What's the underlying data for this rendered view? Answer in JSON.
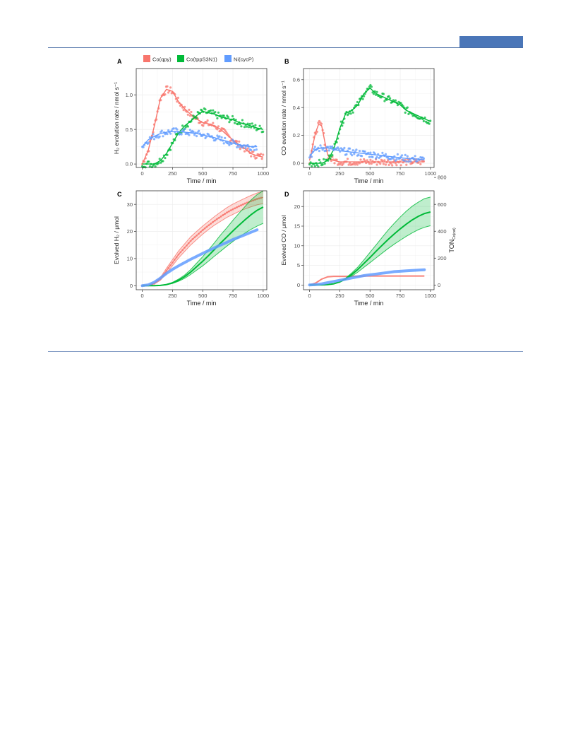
{
  "legend": {
    "items": [
      {
        "name": "Co(qpy)",
        "color": "#F8766D"
      },
      {
        "name": "Co(tppS3N1)",
        "color": "#00BA38"
      },
      {
        "name": "Ni(cycP)",
        "color": "#619CFF"
      }
    ]
  },
  "colors": {
    "rule": "#4a6ea6",
    "tab": "#4a76b8",
    "grid": "#ebebeb",
    "panel_border": "#333333"
  },
  "chart_data": [
    {
      "panel": "A",
      "type": "scatter",
      "xlabel": "Time / min",
      "ylabel": "H₂ evolution rate  / nmol s⁻¹",
      "xlim": [
        -50,
        1030
      ],
      "ylim": [
        -0.05,
        1.38
      ],
      "xticks": [
        0,
        250,
        500,
        750,
        1000
      ],
      "xtick_labels": [
        "0",
        "250",
        "500",
        "750",
        "1000"
      ],
      "yticks": [
        0.0,
        0.5,
        1.0
      ],
      "ytick_labels": [
        "0.0",
        "0.5",
        "1.0"
      ],
      "grid": true,
      "series": [
        {
          "name": "Co(qpy)",
          "style": "scatter-fit",
          "x": [
            0,
            50,
            100,
            150,
            200,
            250,
            300,
            350,
            400,
            450,
            500,
            550,
            600,
            650,
            700,
            750,
            800,
            850,
            900,
            950,
            1000
          ],
          "y": [
            0.0,
            0.2,
            0.55,
            0.95,
            1.08,
            1.05,
            0.9,
            0.8,
            0.72,
            0.65,
            0.6,
            0.58,
            0.55,
            0.5,
            0.42,
            0.35,
            0.28,
            0.22,
            0.15,
            0.12,
            0.1
          ]
        },
        {
          "name": "Co(tppS3N1)",
          "style": "scatter-fit",
          "x": [
            0,
            50,
            100,
            150,
            200,
            250,
            300,
            350,
            400,
            450,
            500,
            550,
            600,
            650,
            700,
            750,
            800,
            850,
            900,
            950,
            1000
          ],
          "y": [
            0.0,
            0.0,
            0.0,
            0.05,
            0.15,
            0.3,
            0.45,
            0.55,
            0.62,
            0.7,
            0.76,
            0.74,
            0.72,
            0.68,
            0.66,
            0.64,
            0.6,
            0.58,
            0.55,
            0.52,
            0.5
          ]
        },
        {
          "name": "Ni(cycP)",
          "style": "scatter-fit",
          "x": [
            0,
            50,
            100,
            150,
            200,
            250,
            300,
            350,
            400,
            450,
            500,
            550,
            600,
            650,
            700,
            750,
            800,
            850,
            900,
            950
          ],
          "y": [
            0.25,
            0.35,
            0.4,
            0.44,
            0.46,
            0.47,
            0.47,
            0.46,
            0.45,
            0.44,
            0.42,
            0.4,
            0.38,
            0.35,
            0.33,
            0.3,
            0.28,
            0.26,
            0.25,
            0.25
          ]
        }
      ]
    },
    {
      "panel": "B",
      "type": "scatter",
      "xlabel": "Time / min",
      "ylabel": "CO evolution rate  / nmol s⁻¹",
      "xlim": [
        -50,
        1030
      ],
      "ylim": [
        -0.03,
        0.68
      ],
      "xticks": [
        0,
        250,
        500,
        750,
        1000
      ],
      "xtick_labels": [
        "0",
        "250",
        "500",
        "750",
        "1000"
      ],
      "yticks": [
        0.0,
        0.2,
        0.4,
        0.6
      ],
      "ytick_labels": [
        "0.0",
        "0.2",
        "0.4",
        "0.6"
      ],
      "grid": true,
      "series": [
        {
          "name": "Co(qpy)",
          "style": "scatter-fit",
          "x": [
            0,
            25,
            50,
            75,
            100,
            125,
            150,
            175,
            200,
            250,
            300,
            400,
            500,
            600,
            700,
            800,
            900,
            950
          ],
          "y": [
            0.02,
            0.12,
            0.22,
            0.28,
            0.27,
            0.16,
            0.06,
            0.03,
            0.02,
            0.01,
            0.01,
            0.01,
            0.01,
            0.01,
            0.01,
            0.01,
            0.01,
            0.01
          ]
        },
        {
          "name": "Co(tppS3N1)",
          "style": "scatter-fit",
          "x": [
            0,
            50,
            100,
            150,
            200,
            250,
            300,
            350,
            400,
            450,
            500,
            550,
            600,
            650,
            700,
            750,
            800,
            850,
            900,
            950,
            1000
          ],
          "y": [
            0.0,
            0.0,
            0.0,
            0.02,
            0.1,
            0.25,
            0.36,
            0.38,
            0.42,
            0.5,
            0.54,
            0.5,
            0.48,
            0.46,
            0.44,
            0.42,
            0.38,
            0.36,
            0.34,
            0.32,
            0.3
          ]
        },
        {
          "name": "Ni(cycP)",
          "style": "scatter-fit",
          "x": [
            0,
            50,
            100,
            150,
            200,
            250,
            300,
            400,
            500,
            600,
            700,
            800,
            900,
            950
          ],
          "y": [
            0.05,
            0.1,
            0.11,
            0.11,
            0.1,
            0.09,
            0.085,
            0.075,
            0.065,
            0.055,
            0.045,
            0.035,
            0.03,
            0.025
          ]
        }
      ]
    },
    {
      "panel": "C",
      "type": "line",
      "xlabel": "Time / min",
      "ylabel": "Evolved H₂ / μmol",
      "xlim": [
        -50,
        1030
      ],
      "ylim": [
        -1.5,
        35
      ],
      "xticks": [
        0,
        250,
        500,
        750,
        1000
      ],
      "xtick_labels": [
        "0",
        "250",
        "500",
        "750",
        "1000"
      ],
      "yticks": [
        0,
        10,
        20,
        30
      ],
      "ytick_labels": [
        "0",
        "10",
        "20",
        "30"
      ],
      "grid": true,
      "series": [
        {
          "name": "Co(qpy)",
          "style": "band-dots",
          "x": [
            0,
            50,
            100,
            150,
            200,
            250,
            300,
            350,
            400,
            450,
            500,
            550,
            600,
            650,
            700,
            750,
            800,
            850,
            900,
            950,
            1000
          ],
          "y": [
            0,
            0.1,
            0.8,
            2.5,
            5.5,
            8.5,
            11.5,
            14,
            16.5,
            18.5,
            20.5,
            22.3,
            24,
            25.5,
            27,
            28.2,
            29.3,
            30.3,
            31.2,
            32,
            32.6
          ],
          "low": [
            0,
            0.1,
            0.6,
            2.0,
            4.6,
            7.4,
            10.2,
            12.6,
            15.0,
            17.0,
            19.0,
            20.8,
            22.4,
            23.8,
            25.2,
            26.3,
            27.4,
            28.3,
            29.1,
            29.8,
            30.3
          ],
          "high": [
            0,
            0.1,
            1.0,
            3.0,
            6.4,
            9.6,
            12.8,
            15.4,
            18.0,
            20.0,
            22.0,
            23.8,
            25.6,
            27.2,
            28.8,
            30.1,
            31.2,
            32.3,
            33.3,
            34.2,
            34.8
          ]
        },
        {
          "name": "Co(tppS3N1)",
          "style": "band-line",
          "x": [
            0,
            50,
            100,
            150,
            200,
            250,
            300,
            350,
            400,
            450,
            500,
            550,
            600,
            650,
            700,
            750,
            800,
            850,
            900,
            950,
            1000
          ],
          "y": [
            0,
            0,
            0,
            0.1,
            0.4,
            1.0,
            2.0,
            3.3,
            5.0,
            7.0,
            9.0,
            11.2,
            13.5,
            15.8,
            18.0,
            20.2,
            22.3,
            24.3,
            26.2,
            27.8,
            29.0
          ],
          "low": [
            0,
            0,
            0,
            0.1,
            0.3,
            0.8,
            1.6,
            2.7,
            4.1,
            5.7,
            7.3,
            9.1,
            11.0,
            12.8,
            14.6,
            16.3,
            17.9,
            19.4,
            20.8,
            22.0,
            23.0
          ],
          "high": [
            0,
            0,
            0,
            0.1,
            0.5,
            1.2,
            2.4,
            3.9,
            5.9,
            8.3,
            10.7,
            13.3,
            16.0,
            18.8,
            21.4,
            24.1,
            26.7,
            29.2,
            31.6,
            33.6,
            35.0
          ]
        },
        {
          "name": "Ni(cycP)",
          "style": "thick-line",
          "x": [
            0,
            50,
            100,
            150,
            200,
            250,
            300,
            350,
            400,
            450,
            500,
            550,
            600,
            650,
            700,
            750,
            800,
            850,
            900,
            950
          ],
          "y": [
            0,
            0.3,
            1.3,
            2.8,
            4.5,
            6.0,
            7.3,
            8.5,
            9.7,
            10.8,
            11.9,
            13.0,
            14.0,
            15.0,
            16.0,
            17.0,
            17.9,
            18.8,
            19.7,
            20.6
          ]
        }
      ]
    },
    {
      "panel": "D",
      "type": "line",
      "xlabel": "Time / min",
      "ylabel": "Evolved CO / μmol",
      "ylabel_right": "TON",
      "ylabel_right_sub": "Co(cat)",
      "xlim": [
        -50,
        1030
      ],
      "ylim": [
        -1.2,
        24
      ],
      "xticks": [
        0,
        250,
        500,
        750,
        1000
      ],
      "xtick_labels": [
        "0",
        "250",
        "500",
        "750",
        "1000"
      ],
      "yticks": [
        0,
        5,
        10,
        15,
        20
      ],
      "ytick_labels": [
        "0",
        "5",
        "10",
        "15",
        "20"
      ],
      "yticks_right": [
        0,
        200,
        400,
        600,
        800
      ],
      "ytick_labels_right": [
        "0",
        "200",
        "400",
        "600",
        "800"
      ],
      "yright_scale": 29.2,
      "grid": true,
      "series": [
        {
          "name": "Co(qpy)",
          "style": "thin-line",
          "x": [
            0,
            50,
            100,
            150,
            200,
            250,
            300,
            400,
            500,
            600,
            700,
            800,
            900,
            950
          ],
          "y": [
            0,
            0.5,
            1.5,
            2.1,
            2.2,
            2.2,
            2.2,
            2.25,
            2.3,
            2.3,
            2.3,
            2.3,
            2.3,
            2.3
          ]
        },
        {
          "name": "Co(tppS3N1)",
          "style": "band-line",
          "x": [
            0,
            50,
            100,
            150,
            200,
            250,
            300,
            350,
            400,
            450,
            500,
            550,
            600,
            650,
            700,
            750,
            800,
            850,
            900,
            950,
            1000
          ],
          "y": [
            0,
            0,
            0,
            0.1,
            0.3,
            0.8,
            1.6,
            2.7,
            4.0,
            5.5,
            7.0,
            8.6,
            10.1,
            11.6,
            13.0,
            14.3,
            15.5,
            16.6,
            17.5,
            18.2,
            18.6
          ],
          "low": [
            0,
            0,
            0,
            0.1,
            0.3,
            0.7,
            1.4,
            2.3,
            3.3,
            4.5,
            5.7,
            6.9,
            8.1,
            9.3,
            10.4,
            11.4,
            12.4,
            13.3,
            14.1,
            14.7,
            15.1
          ],
          "high": [
            0,
            0,
            0,
            0.1,
            0.3,
            0.9,
            1.8,
            3.1,
            4.6,
            6.4,
            8.3,
            10.2,
            12.1,
            14.0,
            15.7,
            17.3,
            18.8,
            20.1,
            21.1,
            22.0,
            22.4
          ]
        },
        {
          "name": "Ni(cycP)",
          "style": "thick-line",
          "x": [
            0,
            50,
            100,
            150,
            200,
            250,
            300,
            350,
            400,
            450,
            500,
            550,
            600,
            650,
            700,
            750,
            800,
            850,
            900,
            950
          ],
          "y": [
            0,
            0.1,
            0.3,
            0.6,
            0.9,
            1.2,
            1.5,
            1.8,
            2.1,
            2.4,
            2.6,
            2.8,
            3.0,
            3.2,
            3.4,
            3.5,
            3.6,
            3.7,
            3.8,
            3.9
          ]
        }
      ]
    }
  ]
}
